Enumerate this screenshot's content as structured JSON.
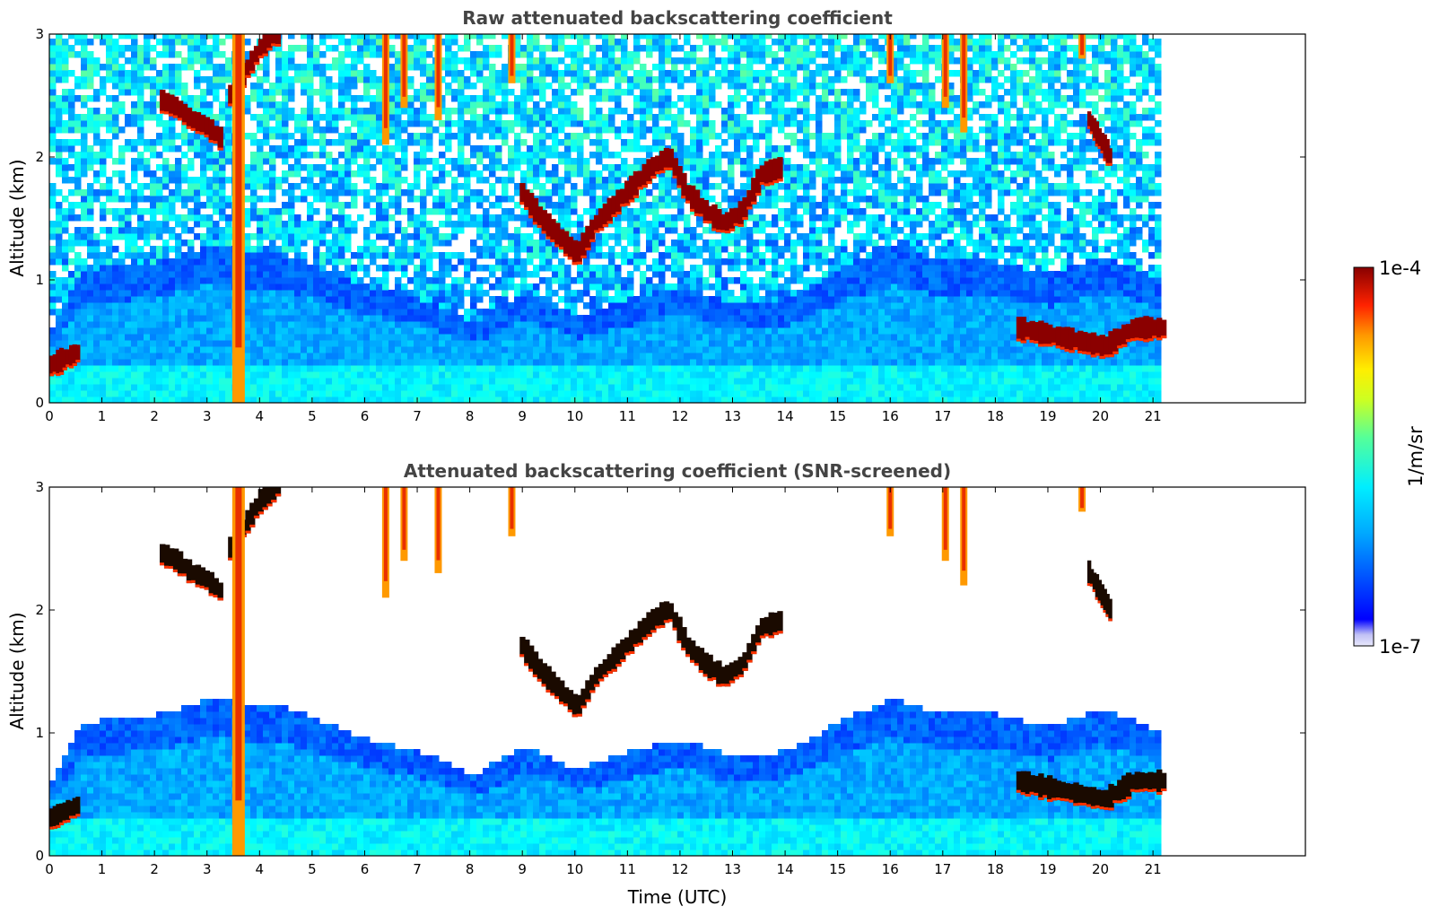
{
  "chart_data": [
    {
      "type": "heatmap",
      "title": "Raw attenuated backscattering coefficient",
      "ylabel": "Altitude (km)",
      "xlabel": "",
      "xlim": [
        0,
        23.9
      ],
      "ylim": [
        0,
        3
      ],
      "x_ticks": [
        "0",
        "1",
        "2",
        "3",
        "4",
        "5",
        "6",
        "7",
        "8",
        "9",
        "10",
        "11",
        "12",
        "13",
        "14",
        "15",
        "16",
        "17",
        "18",
        "19",
        "20",
        "21"
      ],
      "y_ticks": [
        "0",
        "1",
        "2",
        "3"
      ],
      "data_end_time": 21.15,
      "screened": false,
      "cloud_layers": [
        {
          "t_start": 8.95,
          "t_end": 13.85,
          "altitude_km": [
            1.7,
            1.5,
            1.35,
            1.2,
            1.45,
            1.6,
            1.75,
            1.9,
            2.0,
            1.7,
            1.55,
            1.45,
            1.55,
            1.85,
            1.9
          ]
        },
        {
          "t_start": 2.1,
          "t_end": 3.2,
          "altitude_km": [
            2.45,
            2.4,
            2.3,
            2.25,
            2.15
          ]
        },
        {
          "t_start": 3.4,
          "t_end": 4.3,
          "altitude_km": [
            2.5,
            2.7,
            2.9,
            3.0
          ]
        },
        {
          "t_start": 0.0,
          "t_end": 0.5,
          "altitude_km": [
            0.3,
            0.35,
            0.4
          ]
        },
        {
          "t_start": 18.4,
          "t_end": 21.15,
          "altitude_km": [
            0.6,
            0.55,
            0.5,
            0.45,
            0.6,
            0.6
          ]
        },
        {
          "t_start": 19.75,
          "t_end": 20.15,
          "altitude_km": [
            2.3,
            2.15,
            2.0
          ]
        }
      ],
      "precip_streaks": [
        {
          "t": 3.6,
          "top_km": 3.0,
          "bottom_km": 0.0
        },
        {
          "t": 6.4,
          "top_km": 3.0,
          "bottom_km": 2.1
        },
        {
          "t": 6.75,
          "top_km": 3.0,
          "bottom_km": 2.4
        },
        {
          "t": 7.4,
          "top_km": 3.0,
          "bottom_km": 2.3
        },
        {
          "t": 8.8,
          "top_km": 3.0,
          "bottom_km": 2.6
        },
        {
          "t": 16.0,
          "top_km": 3.0,
          "bottom_km": 2.6
        },
        {
          "t": 17.05,
          "top_km": 3.0,
          "bottom_km": 2.4
        },
        {
          "t": 17.4,
          "top_km": 3.0,
          "bottom_km": 2.2
        },
        {
          "t": 19.65,
          "top_km": 3.0,
          "bottom_km": 2.8
        }
      ]
    },
    {
      "type": "heatmap",
      "title": "Attenuated backscattering coefficient (SNR-screened)",
      "ylabel": "Altitude (km)",
      "xlabel": "Time (UTC)",
      "xlim": [
        0,
        23.9
      ],
      "ylim": [
        0,
        3
      ],
      "x_ticks": [
        "0",
        "1",
        "2",
        "3",
        "4",
        "5",
        "6",
        "7",
        "8",
        "9",
        "10",
        "11",
        "12",
        "13",
        "14",
        "15",
        "16",
        "17",
        "18",
        "19",
        "20",
        "21"
      ],
      "y_ticks": [
        "0",
        "1",
        "2",
        "3"
      ],
      "data_end_time": 21.15,
      "screened": true,
      "boundary_layer_top_km": [
        [
          0.0,
          0.6
        ],
        [
          0.55,
          1.08
        ],
        [
          2,
          1.15
        ],
        [
          3,
          1.28
        ],
        [
          4.5,
          1.2
        ],
        [
          6,
          0.95
        ],
        [
          7,
          0.85
        ],
        [
          8,
          0.65
        ],
        [
          9,
          0.9
        ],
        [
          10,
          0.7
        ],
        [
          11,
          0.85
        ],
        [
          12,
          0.95
        ],
        [
          13,
          0.8
        ],
        [
          14,
          0.85
        ],
        [
          15,
          1.1
        ],
        [
          16,
          1.28
        ],
        [
          17,
          1.15
        ],
        [
          18,
          1.15
        ],
        [
          19,
          1.05
        ],
        [
          20,
          1.2
        ],
        [
          21.15,
          1.0
        ]
      ]
    }
  ],
  "colorbar": {
    "max_label": "1e-4",
    "min_label": "1e-7",
    "unit_label": "1/m/sr",
    "colormap": "jet",
    "scale": "log"
  }
}
